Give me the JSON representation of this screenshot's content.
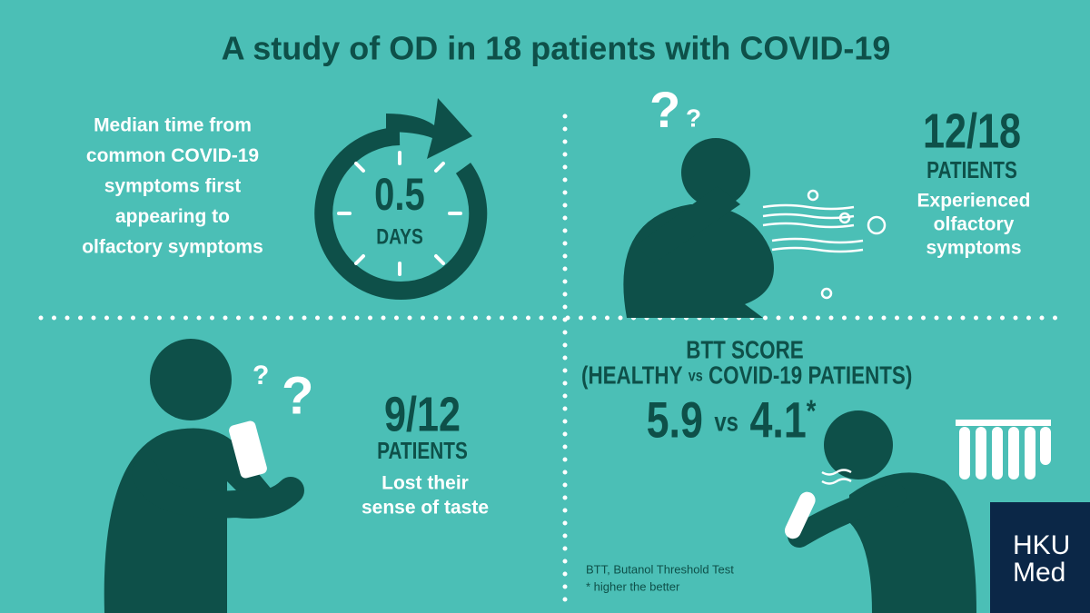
{
  "title": "A study of OD in 18 patients with COVID-19",
  "panels": [
    {
      "description": [
        "Median time from",
        "common COVID-19",
        "symptoms first",
        "appearing to",
        "olfactory symptoms"
      ],
      "value": "0.5",
      "unit": "DAYS"
    },
    {
      "value": "12/18",
      "unit": "PATIENTS",
      "description": [
        "Experienced",
        "olfactory",
        "symptoms"
      ],
      "icon_text": "?"
    },
    {
      "value": "9/12",
      "unit": "PATIENTS",
      "description": [
        "Lost their",
        "sense of taste"
      ],
      "icon_text": "?"
    },
    {
      "heading": "BTT SCORE",
      "subheading": [
        "(HEALTHY",
        "vs",
        "COVID-19 PATIENTS)"
      ],
      "healthy": "5.9",
      "versus": "vs",
      "covid": "4.1",
      "asterisk": "*",
      "footnotes": [
        "BTT, Butanol Threshold Test",
        "* higher the better"
      ]
    }
  ],
  "logo": [
    "HKU",
    "Med"
  ]
}
